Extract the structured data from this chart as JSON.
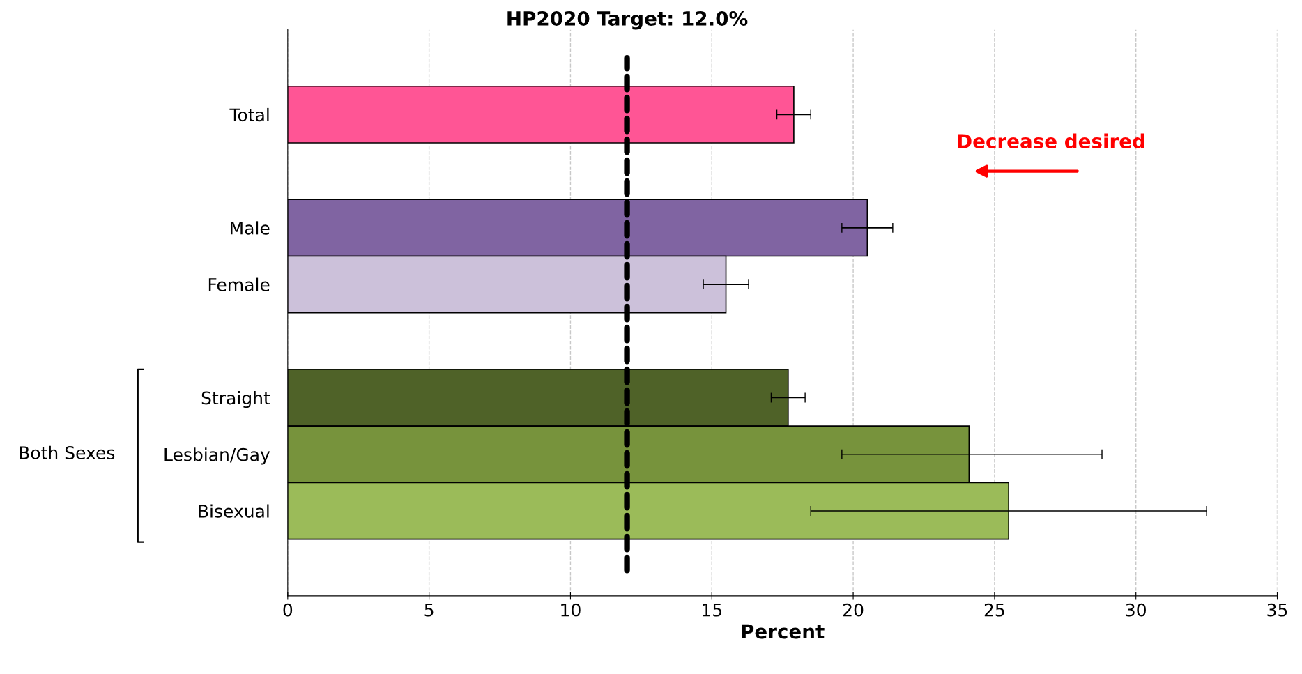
{
  "chart_data": {
    "type": "bar",
    "orientation": "horizontal",
    "xlabel": "Percent",
    "categories": [
      "Total",
      null,
      "Male",
      "Female",
      null,
      "Straight",
      "Lesbian/Gay",
      "Bisexual"
    ],
    "values": [
      17.9,
      null,
      20.5,
      15.5,
      null,
      17.7,
      24.1,
      25.5
    ],
    "colors": [
      "#ff5595",
      "#ffffff",
      "#8064a2",
      "#ccc1da",
      "#ffffff",
      "#4f6228",
      "#77933c",
      "#9bbb59"
    ],
    "errors": [
      [
        17.3,
        18.5
      ],
      null,
      [
        19.6,
        21.4
      ],
      [
        14.7,
        16.3
      ],
      null,
      [
        17.1,
        18.3
      ],
      [
        19.6,
        28.8
      ],
      [
        18.5,
        32.5
      ]
    ],
    "xlim": [
      0,
      35
    ],
    "xticks": [
      0,
      5,
      10,
      15,
      20,
      25,
      30,
      35
    ],
    "ref_lines": [
      {
        "axis": "x",
        "value": 12.0,
        "label": "HP2020 Target: 12.0%",
        "color": "#000000",
        "line_style": "dashed"
      }
    ],
    "annotations": [
      "Decrease desired",
      "Both Sexes"
    ],
    "grid": "x",
    "legend": false
  }
}
